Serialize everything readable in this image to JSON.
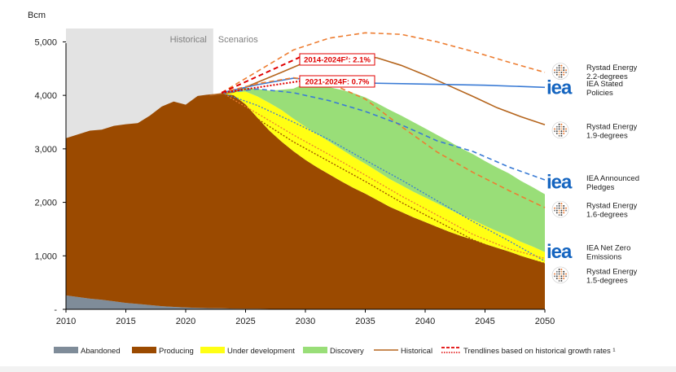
{
  "chart_data": {
    "type": "area",
    "ylabel": "Bcm",
    "ylim": [
      0,
      5250
    ],
    "xlim": [
      2010,
      2050
    ],
    "yticks": [
      {
        "value": 0,
        "label": "-"
      },
      {
        "value": 1000,
        "label": "1,000"
      },
      {
        "value": 2000,
        "label": "2,000"
      },
      {
        "value": 3000,
        "label": "3,000"
      },
      {
        "value": 4000,
        "label": "4,000"
      },
      {
        "value": 5000,
        "label": "5,000"
      }
    ],
    "xticks": [
      2010,
      2015,
      2020,
      2025,
      2030,
      2035,
      2040,
      2045,
      2050
    ],
    "regions": [
      {
        "label": "Historical",
        "from": 2010,
        "to": 2022.3,
        "color": "#e3e3e3"
      },
      {
        "label": "Scenarios",
        "from": 2022.3,
        "to": 2050,
        "color": ""
      }
    ],
    "x": [
      2010,
      2011,
      2012,
      2013,
      2014,
      2015,
      2016,
      2017,
      2018,
      2019,
      2020,
      2021,
      2022,
      2023,
      2024,
      2025,
      2026,
      2027,
      2028,
      2029,
      2030,
      2031,
      2032,
      2033,
      2034,
      2035,
      2036,
      2037,
      2038,
      2039,
      2040,
      2041,
      2042,
      2043,
      2044,
      2045,
      2046,
      2047,
      2048,
      2049,
      2050
    ],
    "stacked_series": [
      {
        "name": "Abandoned",
        "color": "#7f8c99",
        "values": [
          260,
          230,
          200,
          180,
          150,
          120,
          100,
          80,
          60,
          45,
          35,
          28,
          22,
          18,
          14,
          12,
          10,
          8,
          6,
          5,
          4,
          3,
          3,
          2,
          2,
          2,
          2,
          1,
          1,
          1,
          1,
          1,
          1,
          1,
          1,
          1,
          1,
          1,
          1,
          1,
          1
        ]
      },
      {
        "name": "Producing",
        "color": "#9b4a00",
        "values": [
          2940,
          3040,
          3140,
          3180,
          3280,
          3340,
          3380,
          3540,
          3730,
          3840,
          3790,
          3960,
          3995,
          4010,
          3990,
          3820,
          3570,
          3330,
          3130,
          2950,
          2790,
          2650,
          2520,
          2390,
          2270,
          2160,
          2040,
          1920,
          1820,
          1720,
          1630,
          1540,
          1450,
          1370,
          1300,
          1220,
          1150,
          1080,
          1000,
          930,
          860
        ]
      },
      {
        "name": "Under development",
        "color": "#ffff14",
        "values": [
          0,
          0,
          0,
          0,
          0,
          0,
          0,
          0,
          0,
          0,
          0,
          0,
          0,
          0,
          56,
          238,
          400,
          520,
          590,
          610,
          620,
          620,
          610,
          600,
          580,
          560,
          540,
          520,
          500,
          480,
          460,
          440,
          420,
          390,
          370,
          340,
          310,
          290,
          260,
          240,
          210
        ]
      },
      {
        "name": "Discovery",
        "color": "#99de78",
        "values": [
          0,
          0,
          0,
          0,
          0,
          0,
          0,
          0,
          0,
          0,
          0,
          0,
          0,
          0,
          20,
          70,
          140,
          230,
          380,
          560,
          810,
          920,
          1020,
          1110,
          1190,
          1240,
          1270,
          1290,
          1300,
          1300,
          1290,
          1280,
          1270,
          1250,
          1230,
          1210,
          1190,
          1170,
          1140,
          1110,
          1080
        ]
      }
    ],
    "line_series": [
      {
        "name": "Historical",
        "color": "#b5651d",
        "style": "solid",
        "x": [
          2022,
          2024,
          2028,
          2030,
          2032,
          2034,
          2036,
          2038,
          2040,
          2042,
          2044,
          2046,
          2048,
          2050
        ],
        "values": [
          4000,
          4060,
          4430,
          4620,
          4740,
          4760,
          4700,
          4560,
          4380,
          4180,
          3980,
          3770,
          3600,
          3450
        ]
      },
      {
        "name": "Rystad Energy 2.2-degrees",
        "color": "#ed7d31",
        "style": "dashed",
        "x": [
          2023,
          2026,
          2029,
          2032,
          2035,
          2038,
          2041,
          2044,
          2047,
          2050
        ],
        "values": [
          4050,
          4450,
          4850,
          5070,
          5170,
          5140,
          5000,
          4820,
          4620,
          4430
        ]
      },
      {
        "name": "IEA Stated Policies",
        "color": "#3a7bd5",
        "style": "solid",
        "x": [
          2023,
          2026,
          2029,
          2032,
          2035,
          2040,
          2045,
          2050
        ],
        "values": [
          4050,
          4200,
          4320,
          4260,
          4230,
          4210,
          4190,
          4150
        ]
      },
      {
        "name": "Rystad Energy 1.9-degrees",
        "color": "#ed7d31",
        "style": "dashed",
        "x": [
          2023,
          2026,
          2029,
          2032,
          2035,
          2038,
          2041,
          2044,
          2047,
          2050
        ],
        "values": [
          4050,
          4220,
          4330,
          4230,
          3930,
          3420,
          2940,
          2560,
          2220,
          1900
        ]
      },
      {
        "name": "IEA Announced Pledges",
        "color": "#3a7bd5",
        "style": "dashed",
        "x": [
          2023,
          2026,
          2029,
          2032,
          2035,
          2038,
          2041,
          2044,
          2047,
          2050
        ],
        "values": [
          4050,
          4120,
          4050,
          3900,
          3700,
          3450,
          3150,
          2950,
          2660,
          2420
        ]
      },
      {
        "name": "IEA Net Zero Emissions",
        "color": "#3a7bd5",
        "style": "dotted",
        "x": [
          2023,
          2026,
          2029,
          2032,
          2035,
          2038,
          2041,
          2044,
          2047,
          2050
        ],
        "values": [
          4050,
          3810,
          3500,
          3170,
          2790,
          2420,
          2030,
          1640,
          1280,
          900
        ]
      },
      {
        "name": "Rystad Energy 1.6-degrees",
        "color": "#ed7d31",
        "style": "dotted",
        "x": [
          2023,
          2026,
          2029,
          2032,
          2035,
          2038,
          2041,
          2044,
          2047,
          2050
        ],
        "values": [
          4050,
          3660,
          3260,
          2890,
          2510,
          2120,
          1760,
          1400,
          1130,
          950
        ]
      },
      {
        "name": "Rystad Energy 1.5-degrees",
        "color": "#9b4a00",
        "style": "dotted",
        "x": [
          2023,
          2026,
          2029,
          2032,
          2035,
          2038,
          2041,
          2044,
          2047,
          2050
        ],
        "values": [
          4050,
          3560,
          3130,
          2760,
          2390,
          2000,
          1650,
          1300,
          1040,
          860
        ]
      }
    ],
    "trendlines": [
      {
        "label": "2014-2024F²: 2.1%",
        "color": "#e00000",
        "style": "dashed",
        "x": [
          2023,
          2030
        ],
        "values": [
          4050,
          4760
        ]
      },
      {
        "label": "2021-2024F: 0.7%",
        "color": "#e00000",
        "style": "dotted",
        "x": [
          2023,
          2030
        ],
        "values": [
          4050,
          4280
        ]
      }
    ],
    "right_labels": [
      {
        "lines": [
          "Rystad Energy",
          "2.2-degrees"
        ],
        "logo": "rystad-logo",
        "value": 4450
      },
      {
        "lines": [
          "IEA Stated",
          "Policies"
        ],
        "logo": "iea-logo",
        "value": 4150
      },
      {
        "lines": [
          "Rystad Energy",
          "1.9-degrees"
        ],
        "logo": "rystad-logo",
        "value": 3350
      },
      {
        "lines": [
          "IEA Announced",
          "Pledges"
        ],
        "logo": "iea-logo",
        "value": 2380
      },
      {
        "lines": [
          "Rystad Energy",
          "1.6-degrees"
        ],
        "logo": "rystad-logo",
        "value": 1870
      },
      {
        "lines": [
          "IEA Net Zero",
          "Emissions"
        ],
        "logo": "iea-logo",
        "value": 1080
      },
      {
        "lines": [
          "Rystad Energy",
          "1.5-degrees"
        ],
        "logo": "rystad-logo",
        "value": 640
      }
    ],
    "legend": {
      "placement": "bottom",
      "items": [
        {
          "label": "Abandoned",
          "kind": "box",
          "color": "#7f8c99"
        },
        {
          "label": "Producing",
          "kind": "box",
          "color": "#9b4a00"
        },
        {
          "label": "Under development",
          "kind": "box",
          "color": "#ffff14"
        },
        {
          "label": "Discovery",
          "kind": "box",
          "color": "#99de78"
        },
        {
          "label": "Historical",
          "kind": "line",
          "color": "#b5651d"
        },
        {
          "label": "Trendlines based on historical growth rates ¹",
          "kind": "trend",
          "color": "#e00000"
        }
      ]
    }
  }
}
